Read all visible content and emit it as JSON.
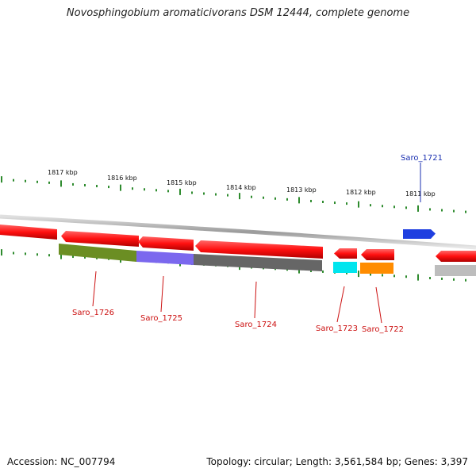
{
  "title": "Novosphingobium aromaticivorans DSM 12444, complete genome",
  "footer": {
    "accession": "Accession: NC_007794",
    "stats": "Topology: circular; Length: 3,561,584 bp; Genes: 3,397"
  },
  "ticks": [
    {
      "label": "1817 kbp",
      "pos": 1817
    },
    {
      "label": "1816 kbp",
      "pos": 1816
    },
    {
      "label": "1815 kbp",
      "pos": 1815
    },
    {
      "label": "1814 kbp",
      "pos": 1814
    },
    {
      "label": "1813 kbp",
      "pos": 1813
    },
    {
      "label": "1812 kbp",
      "pos": 1812
    },
    {
      "label": "1811 kbp",
      "pos": 1811
    }
  ],
  "genes": [
    {
      "name": "Saro_1721",
      "color": "#1f3fe0",
      "label_color": "#1a2fb0",
      "strand": "plus"
    },
    {
      "name": "Saro_1722",
      "color": "#ff8c00",
      "label_color": "#cc1111",
      "strand": "minus"
    },
    {
      "name": "Saro_1723",
      "color": "#00e5ee",
      "label_color": "#cc1111",
      "strand": "minus"
    },
    {
      "name": "Saro_1724",
      "color": "#666666",
      "label_color": "#cc1111",
      "strand": "minus"
    },
    {
      "name": "Saro_1725",
      "color": "#7b68ee",
      "label_color": "#cc1111",
      "strand": "minus"
    },
    {
      "name": "Saro_1726",
      "color": "#6b8e23",
      "label_color": "#cc1111",
      "strand": "minus"
    }
  ],
  "colors": {
    "cds": "#ff1a1a",
    "tick": "#2e8b2e",
    "backbone": "#999999"
  }
}
